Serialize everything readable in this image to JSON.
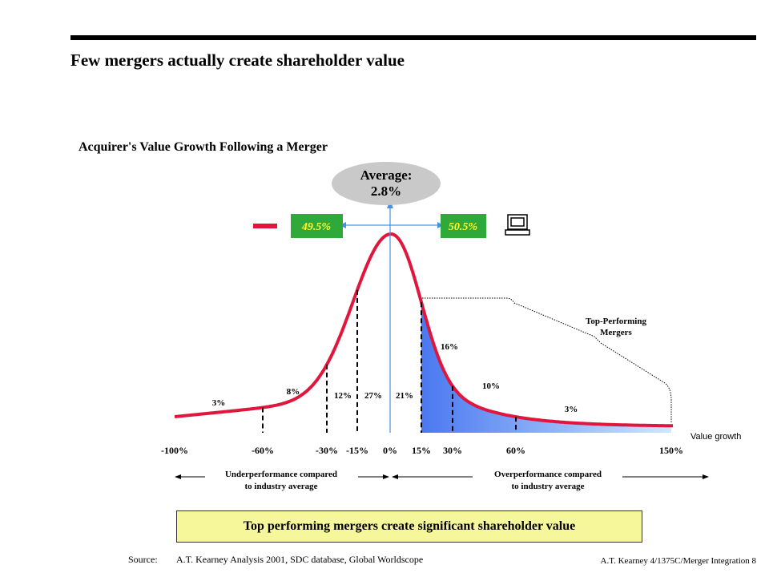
{
  "page": {
    "title": "Few mergers actually create shareholder value",
    "subtitle": "Acquirer's Value Growth Following a Merger",
    "banner": "Top performing mergers create significant shareholder value",
    "source_label": "Source:",
    "source_text": "A.T. Kearney Analysis 2001, SDC database, Global Worldscope",
    "footer": "A.T. Kearney 4/1375C/Merger Integration    8"
  },
  "chart_data": {
    "type": "area",
    "title": "Acquirer's Value Growth Following a Merger",
    "xlabel": "Value growth",
    "x_ticks": [
      "-100%",
      "-60%",
      "-30%",
      "-15%",
      "0%",
      "15%",
      "30%",
      "60%",
      "150%"
    ],
    "average_label_line1": "Average:",
    "average_label_line2": "2.8%",
    "left_share": "49.5%",
    "right_share": "50.5%",
    "segments": [
      {
        "range": "-100% to -60%",
        "label": "3%"
      },
      {
        "range": "-60% to -30%",
        "label": "8%"
      },
      {
        "range": "-30% to -15%",
        "label": "12%"
      },
      {
        "range": "-15% to 0%",
        "label": "27%"
      },
      {
        "range": "0% to 15%",
        "label": "21%"
      },
      {
        "range": "15% to 30%",
        "label": "16%"
      },
      {
        "range": "30% to 60%",
        "label": "10%"
      },
      {
        "range": "60% to 150%",
        "label": "3%"
      }
    ],
    "top_performing_label_line1": "Top-Performing",
    "top_performing_label_line2": "Mergers",
    "under_label_line1": "Underperformance compared",
    "under_label_line2": "to industry average",
    "over_label_line1": "Overperformance compared",
    "over_label_line2": "to industry average",
    "colors": {
      "curve": "#e0163c",
      "fill_start": "#4a78f0",
      "fill_end": "#cfe8ff",
      "share_box": "#2fa93a",
      "share_text": "#ffff33",
      "average_ellipse": "#c9c9c9",
      "axis_arrow": "#4a90e2"
    }
  }
}
